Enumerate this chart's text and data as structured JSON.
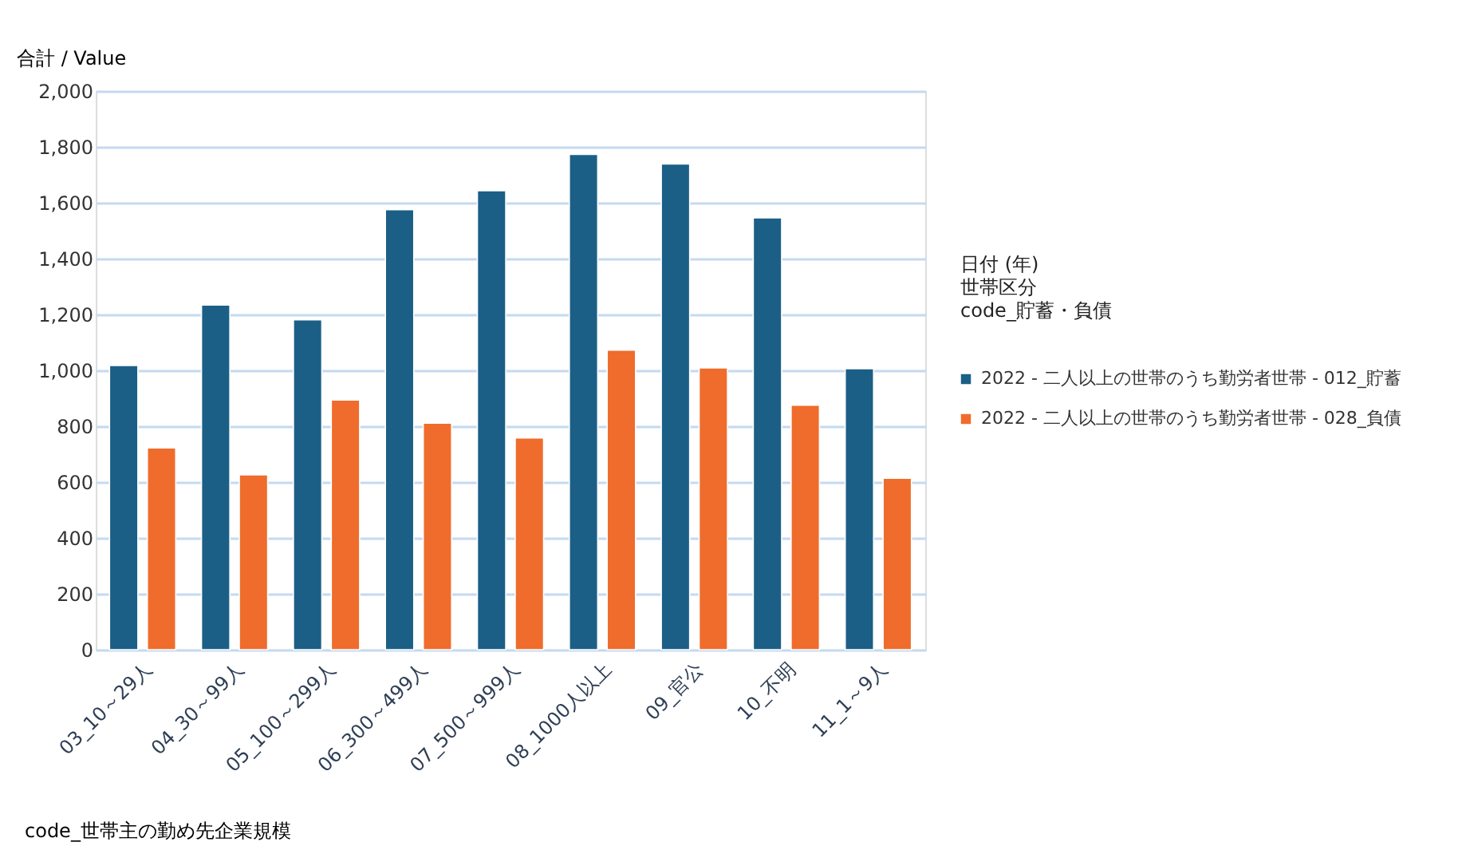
{
  "chart_data": {
    "type": "bar",
    "ylabel": "合計 / Value",
    "xlabel": "code_世帯主の勤め先企業規模",
    "categories": [
      "03_10～29人",
      "04_30～99人",
      "05_100～299人",
      "06_300～499人",
      "07_500～999人",
      "08_1000人以上",
      "09_官公",
      "10_不明",
      "11_1～9人"
    ],
    "series": [
      {
        "name": "2022 - 二人以上の世帯のうち勤労者世帯 - 012_貯蓄",
        "color": "#1b5f86",
        "values": [
          1017,
          1234,
          1181,
          1575,
          1643,
          1773,
          1739,
          1546,
          1006
        ]
      },
      {
        "name": "2022 - 二人以上の世帯のうち勤労者世帯 - 028_負債",
        "color": "#ef6c2c",
        "values": [
          722,
          626,
          894,
          811,
          758,
          1072,
          1009,
          875,
          614
        ]
      }
    ],
    "ylim": [
      0,
      2000
    ],
    "yticks": [
      0,
      200,
      400,
      600,
      800,
      {
        "value": 1000,
        "label": "1,000"
      },
      {
        "value": 1200,
        "label": "1,200"
      },
      {
        "value": 1400,
        "label": "1,400"
      },
      {
        "value": 1600,
        "label": "1,600"
      },
      {
        "value": 1800,
        "label": "1,800"
      },
      {
        "value": 2000,
        "label": "2,000"
      }
    ],
    "annotations": [
      "日付 (年)",
      "世帯区分",
      "code_貯蓄・負債"
    ],
    "grid": "y",
    "legend": "right"
  }
}
